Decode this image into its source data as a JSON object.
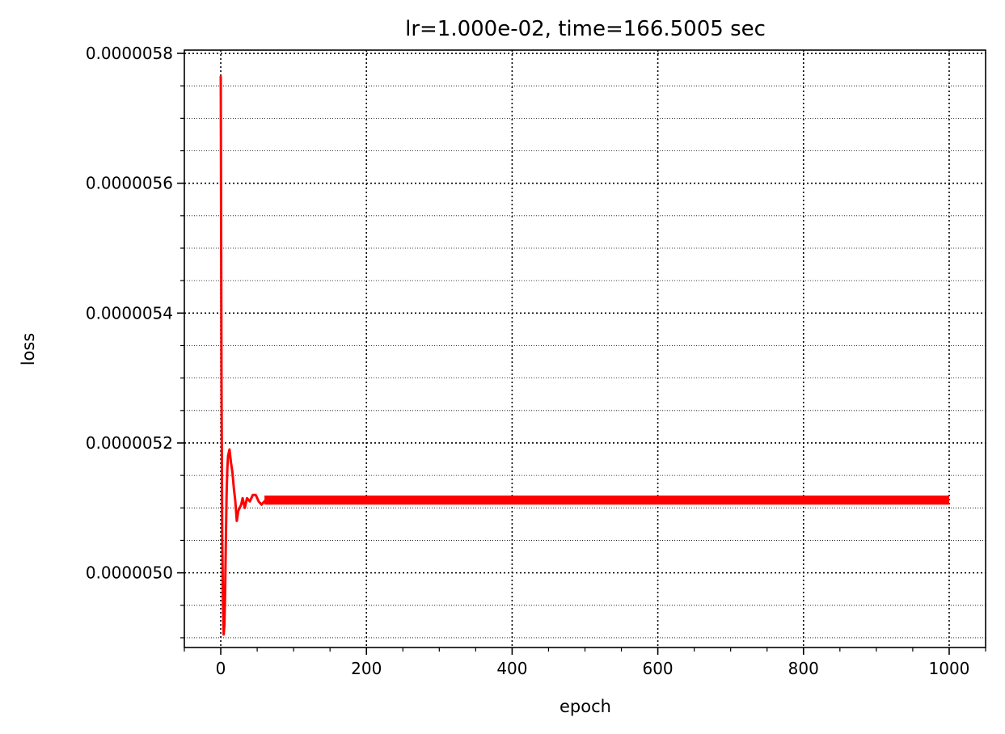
{
  "chart_data": {
    "type": "line",
    "title": "lr=1.000e-02, time=166.5005 sec",
    "xlabel": "epoch",
    "ylabel": "loss",
    "xlim": [
      -50,
      1050
    ],
    "ylim": [
      4.885e-06,
      5.805e-06
    ],
    "x_ticks": [
      0,
      200,
      400,
      600,
      800,
      1000
    ],
    "x_tick_labels": [
      "0",
      "200",
      "400",
      "600",
      "800",
      "1000"
    ],
    "y_ticks": [
      5e-06,
      5.2e-06,
      5.4e-06,
      5.6e-06,
      5.8e-06
    ],
    "y_tick_labels": [
      "0.0000050",
      "0.0000052",
      "0.0000054",
      "0.0000056",
      "0.0000058"
    ],
    "x_minor_step": 50,
    "y_minor_step": 5e-08,
    "grid": {
      "major": true,
      "minor": true,
      "style": "dotted"
    },
    "series": [
      {
        "color": "#ff0000",
        "x": [
          0,
          1,
          2,
          3,
          4,
          5,
          6,
          7,
          8,
          9,
          10,
          12,
          14,
          16,
          18,
          20,
          22,
          24,
          26,
          28,
          30,
          33,
          36,
          40,
          44,
          48,
          52,
          56,
          60,
          65,
          70,
          80,
          100,
          150,
          200,
          300,
          400,
          450,
          500,
          600,
          700,
          800,
          900,
          1000
        ],
        "y": [
          5.765e-06,
          5.3e-06,
          5.05e-06,
          4.96e-06,
          4.905e-06,
          4.92e-06,
          4.97e-06,
          5.05e-06,
          5.12e-06,
          5.16e-06,
          5.18e-06,
          5.19e-06,
          5.17e-06,
          5.155e-06,
          5.13e-06,
          5.11e-06,
          5.08e-06,
          5.095e-06,
          5.1e-06,
          5.105e-06,
          5.115e-06,
          5.1e-06,
          5.115e-06,
          5.11e-06,
          5.12e-06,
          5.12e-06,
          5.11e-06,
          5.105e-06,
          5.11e-06,
          5.115e-06,
          5.112e-06,
          5.112e-06,
          5.112e-06,
          5.112e-06,
          5.112e-06,
          5.112e-06,
          5.112e-06,
          5.112e-06,
          5.112e-06,
          5.112e-06,
          5.112e-06,
          5.112e-06,
          5.112e-06,
          5.112e-06
        ],
        "noise_band": 7e-09
      }
    ]
  }
}
